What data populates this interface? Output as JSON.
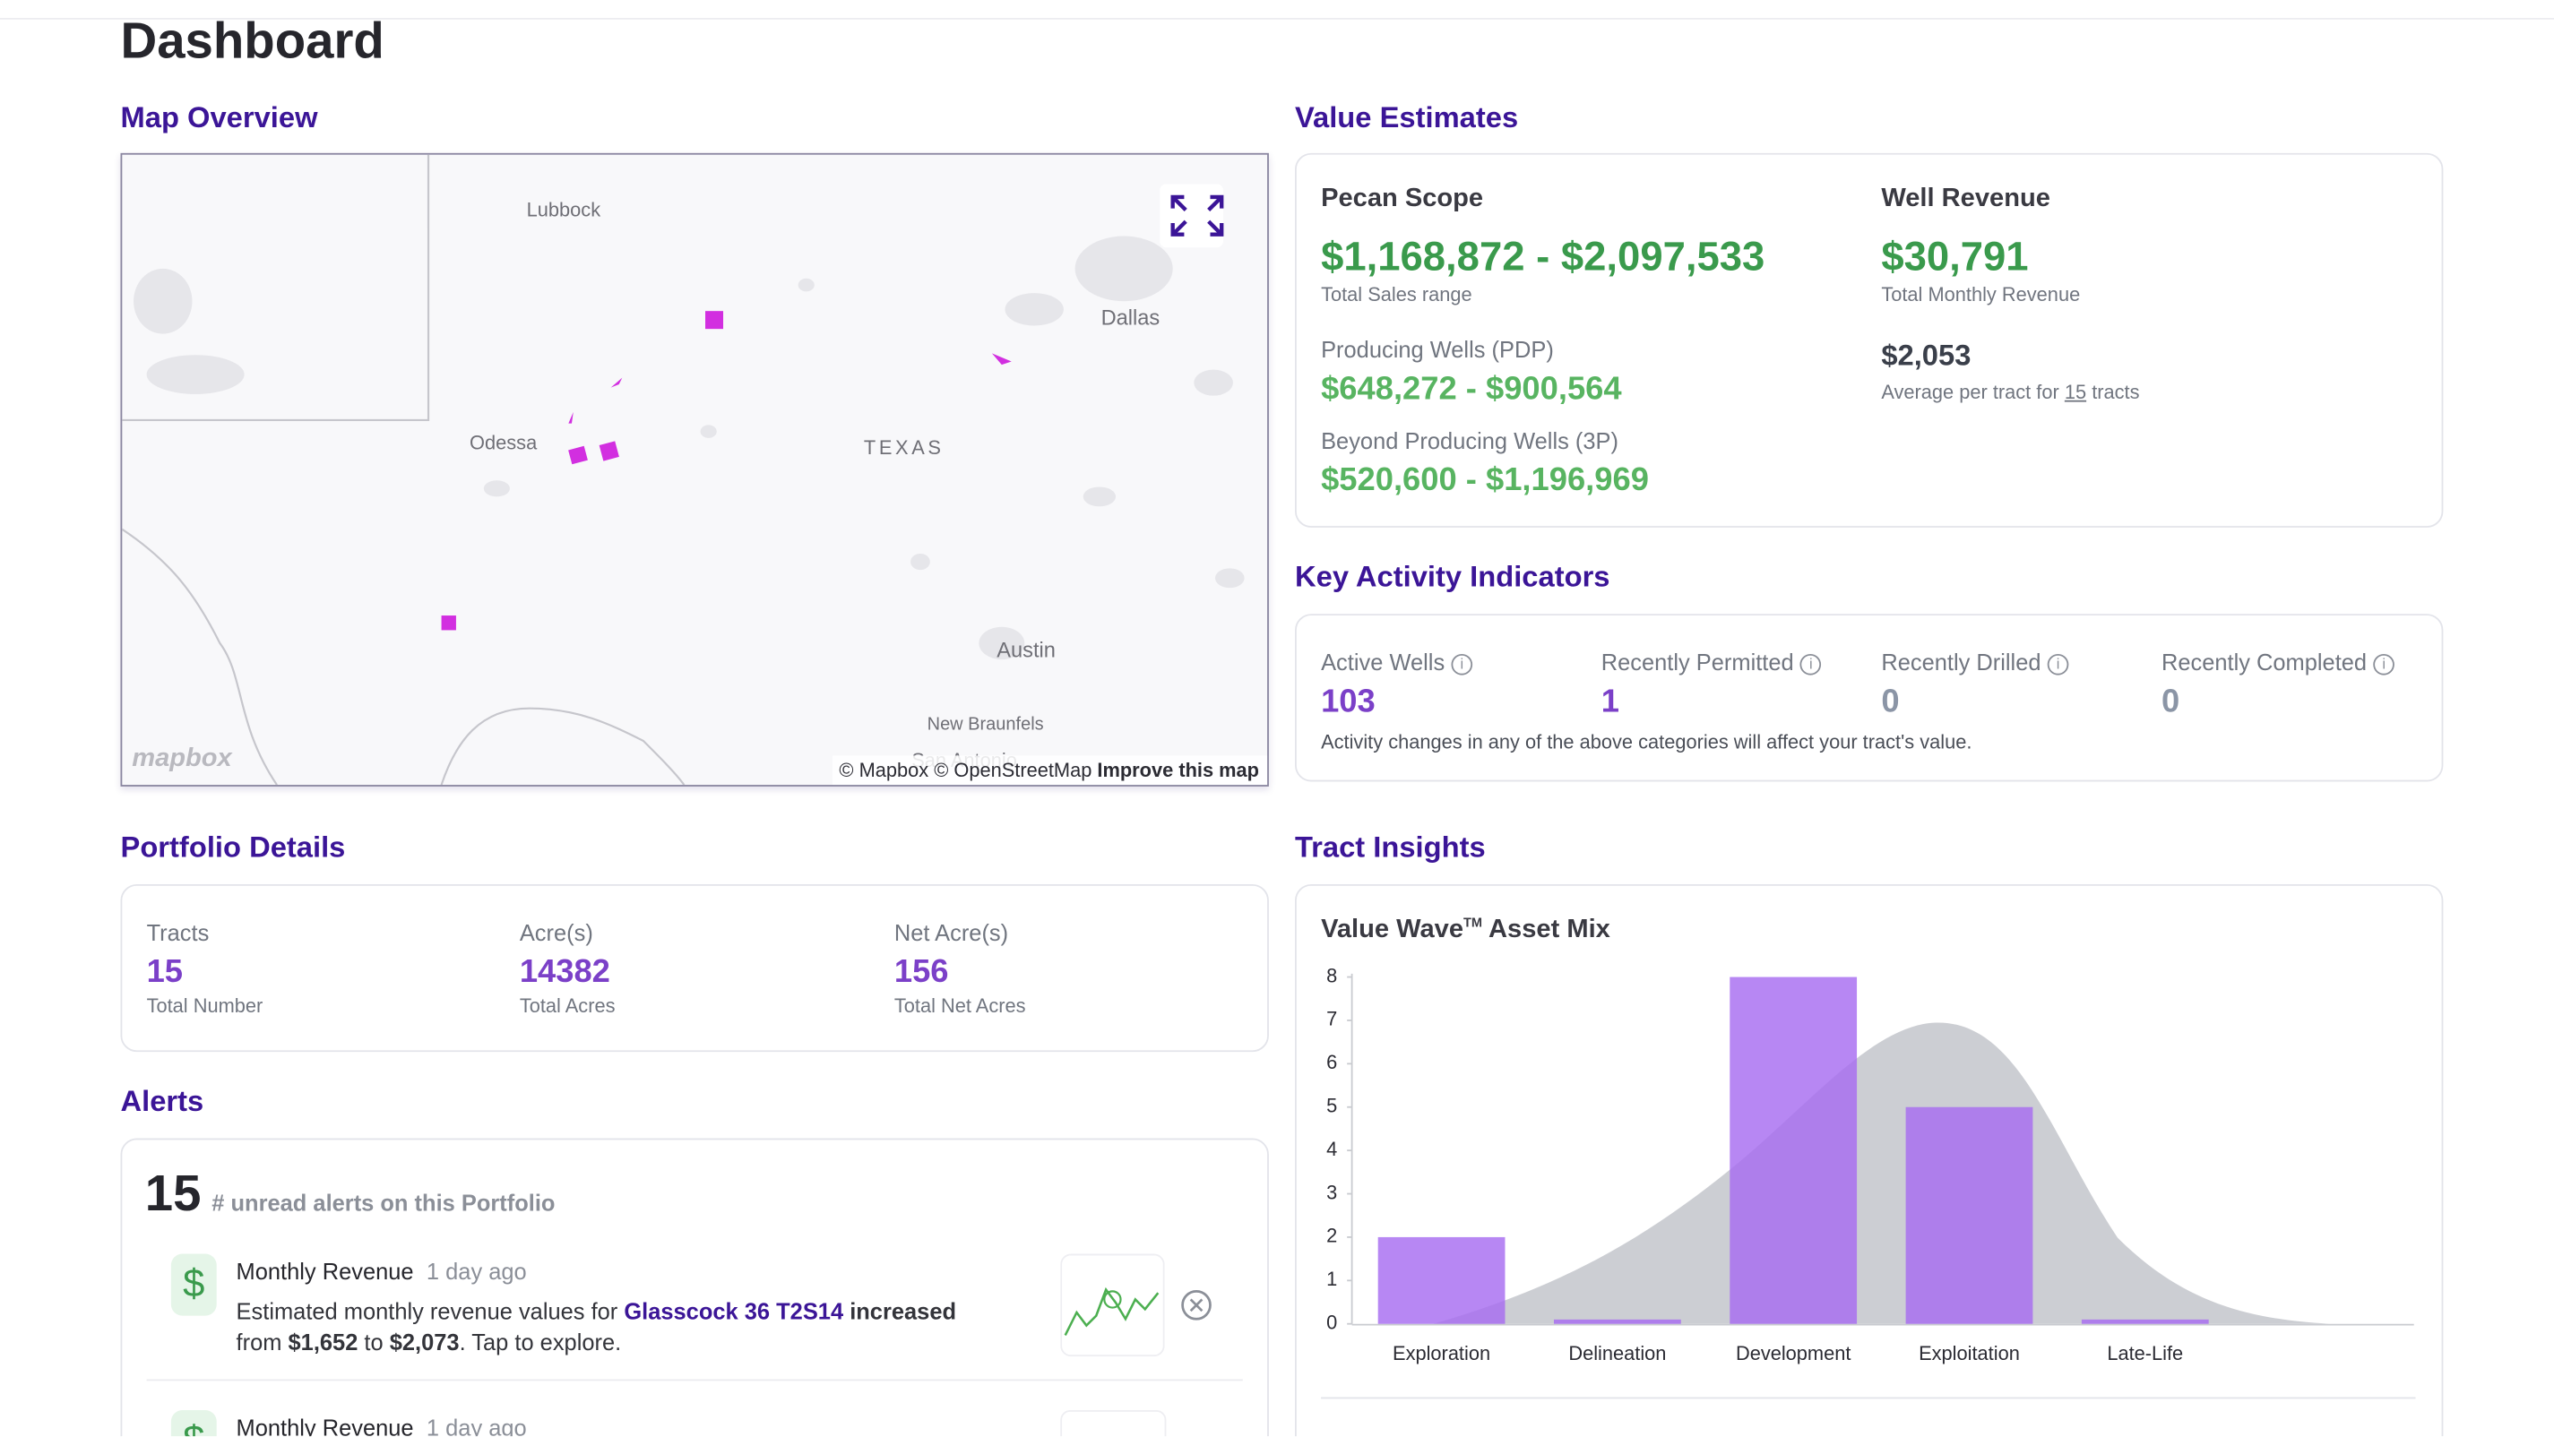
{
  "header": {
    "title": "Dashboard"
  },
  "map": {
    "heading": "Map Overview",
    "labels": [
      "Lubbock",
      "Dallas",
      "Odessa",
      "TEXAS",
      "Austin",
      "New Braunfels",
      "San Antonio"
    ],
    "logo": "mapbox",
    "attribution": "© Mapbox © OpenStreetMap",
    "improve": "Improve this map"
  },
  "value_estimates": {
    "heading": "Value Estimates",
    "pecan": {
      "title": "Pecan Scope",
      "range": "$1,168,872 - $2,097,533",
      "range_label": "Total Sales range",
      "pdp_label": "Producing Wells (PDP)",
      "pdp": "$648,272 - $900,564",
      "beyond_label": "Beyond Producing Wells (3P)",
      "beyond": "$520,600 - $1,196,969"
    },
    "well": {
      "title": "Well Revenue",
      "value": "$30,791",
      "value_label": "Total Monthly Revenue",
      "avg": "$2,053",
      "avg_text": "Average per tract for",
      "avg_count": "15",
      "avg_unit": "tracts"
    }
  },
  "activity": {
    "heading": "Key Activity Indicators",
    "items": [
      {
        "label": "Active Wells",
        "value": "103"
      },
      {
        "label": "Recently Permitted",
        "value": "1"
      },
      {
        "label": "Recently Drilled",
        "value": "0"
      },
      {
        "label": "Recently Completed",
        "value": "0"
      }
    ],
    "note": "Activity changes in any of the above categories will affect your tract's value."
  },
  "portfolio": {
    "heading": "Portfolio Details",
    "items": [
      {
        "label": "Tracts",
        "value": "15",
        "sub": "Total Number"
      },
      {
        "label": "Acre(s)",
        "value": "14382",
        "sub": "Total Acres"
      },
      {
        "label": "Net Acre(s)",
        "value": "156",
        "sub": "Total Net Acres"
      }
    ]
  },
  "alerts": {
    "heading": "Alerts",
    "count": "15",
    "count_label": "# unread alerts on this Portfolio",
    "items": [
      {
        "icon": "$",
        "title": "Monthly Revenue",
        "time": "1 day ago",
        "message": [
          "Estimated monthly revenue values for",
          "Glasscock 36 T2S14",
          "increased",
          "from",
          "$1,652",
          "to",
          "$2,073",
          ". Tap to explore."
        ]
      },
      {
        "icon": "$",
        "title": "Monthly Revenue",
        "time": "1 day ago"
      }
    ]
  },
  "tract_insights": {
    "heading": "Tract Insights"
  },
  "chart_data": {
    "type": "bar",
    "title": "Value Wave",
    "title_mark": "TM",
    "title_rest": "Asset Mix",
    "categories": [
      "Exploration",
      "Delineation",
      "Development",
      "Exploitation",
      "Late-Life"
    ],
    "values": [
      2,
      0.1,
      8,
      5,
      0.1
    ],
    "color": "#a76df0",
    "ylim": [
      0,
      8
    ],
    "yticks": [
      0,
      1,
      2,
      3,
      4,
      5,
      6,
      7,
      8
    ]
  }
}
